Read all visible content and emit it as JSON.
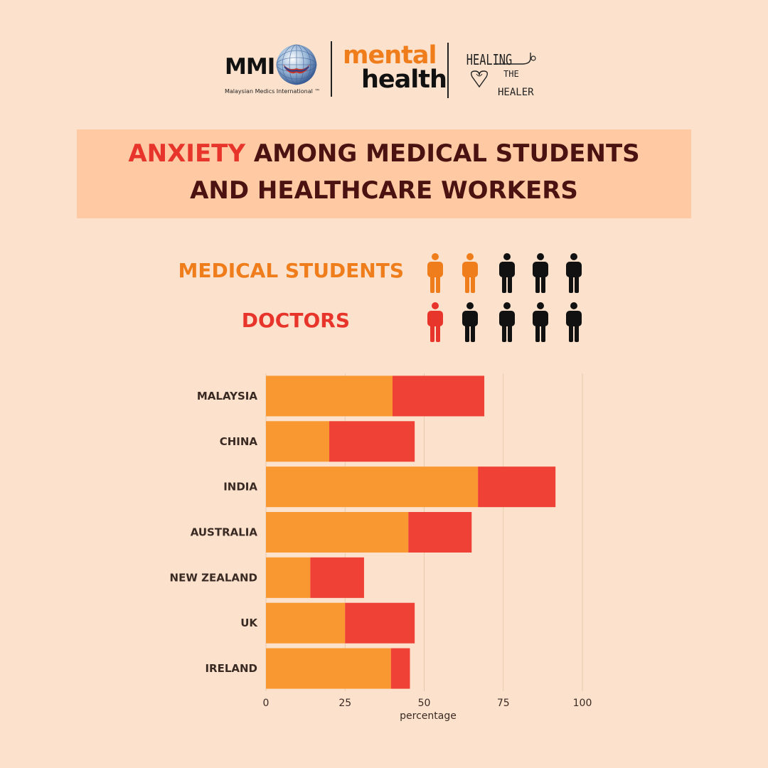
{
  "header": {
    "mmi_text": "MMI",
    "mmi_tagline": "Malaysian Medics International ™",
    "mental_text": "mental",
    "health_text": "health",
    "healing_text": "HEALING",
    "the_text": "THE",
    "healer_text": "HEALER"
  },
  "title": {
    "accent": "ANXIETY",
    "line1_rest": " AMONG MEDICAL STUDENTS",
    "line2": "AND HEALTHCARE WORKERS"
  },
  "legend": {
    "medical_students": "MEDICAL STUDENTS",
    "doctors": "DOCTORS",
    "medical_students_highlighted": 2,
    "doctors_highlighted": 1,
    "total_icons": 5
  },
  "colors": {
    "background": "#fce2cc",
    "title_box": "#fec9a3",
    "medical_students": "#f99730",
    "doctors": "#ef4136",
    "legend_medical": "#f07d1c",
    "legend_doctors": "#e8352c",
    "title_text": "#4a1311",
    "inactive_icon": "#111111"
  },
  "chart_data": {
    "type": "bar",
    "orientation": "horizontal",
    "stacked": true,
    "categories": [
      "MALAYSIA",
      "CHINA",
      "INDIA",
      "AUSTRALIA",
      "NEW ZEALAND",
      "UK",
      "IRELAND"
    ],
    "series": [
      {
        "name": "MEDICAL STUDENTS",
        "values": [
          40,
          20,
          67,
          45,
          14,
          25,
          39.5
        ]
      },
      {
        "name": "DOCTORS",
        "values": [
          29,
          27,
          24.5,
          20,
          17,
          22,
          6
        ]
      }
    ],
    "x_ticks": [
      "0",
      "25",
      "50",
      "75",
      "100"
    ],
    "xlabel": "percentage",
    "ylabel": "",
    "xlim": [
      0,
      100
    ],
    "grid": true
  }
}
